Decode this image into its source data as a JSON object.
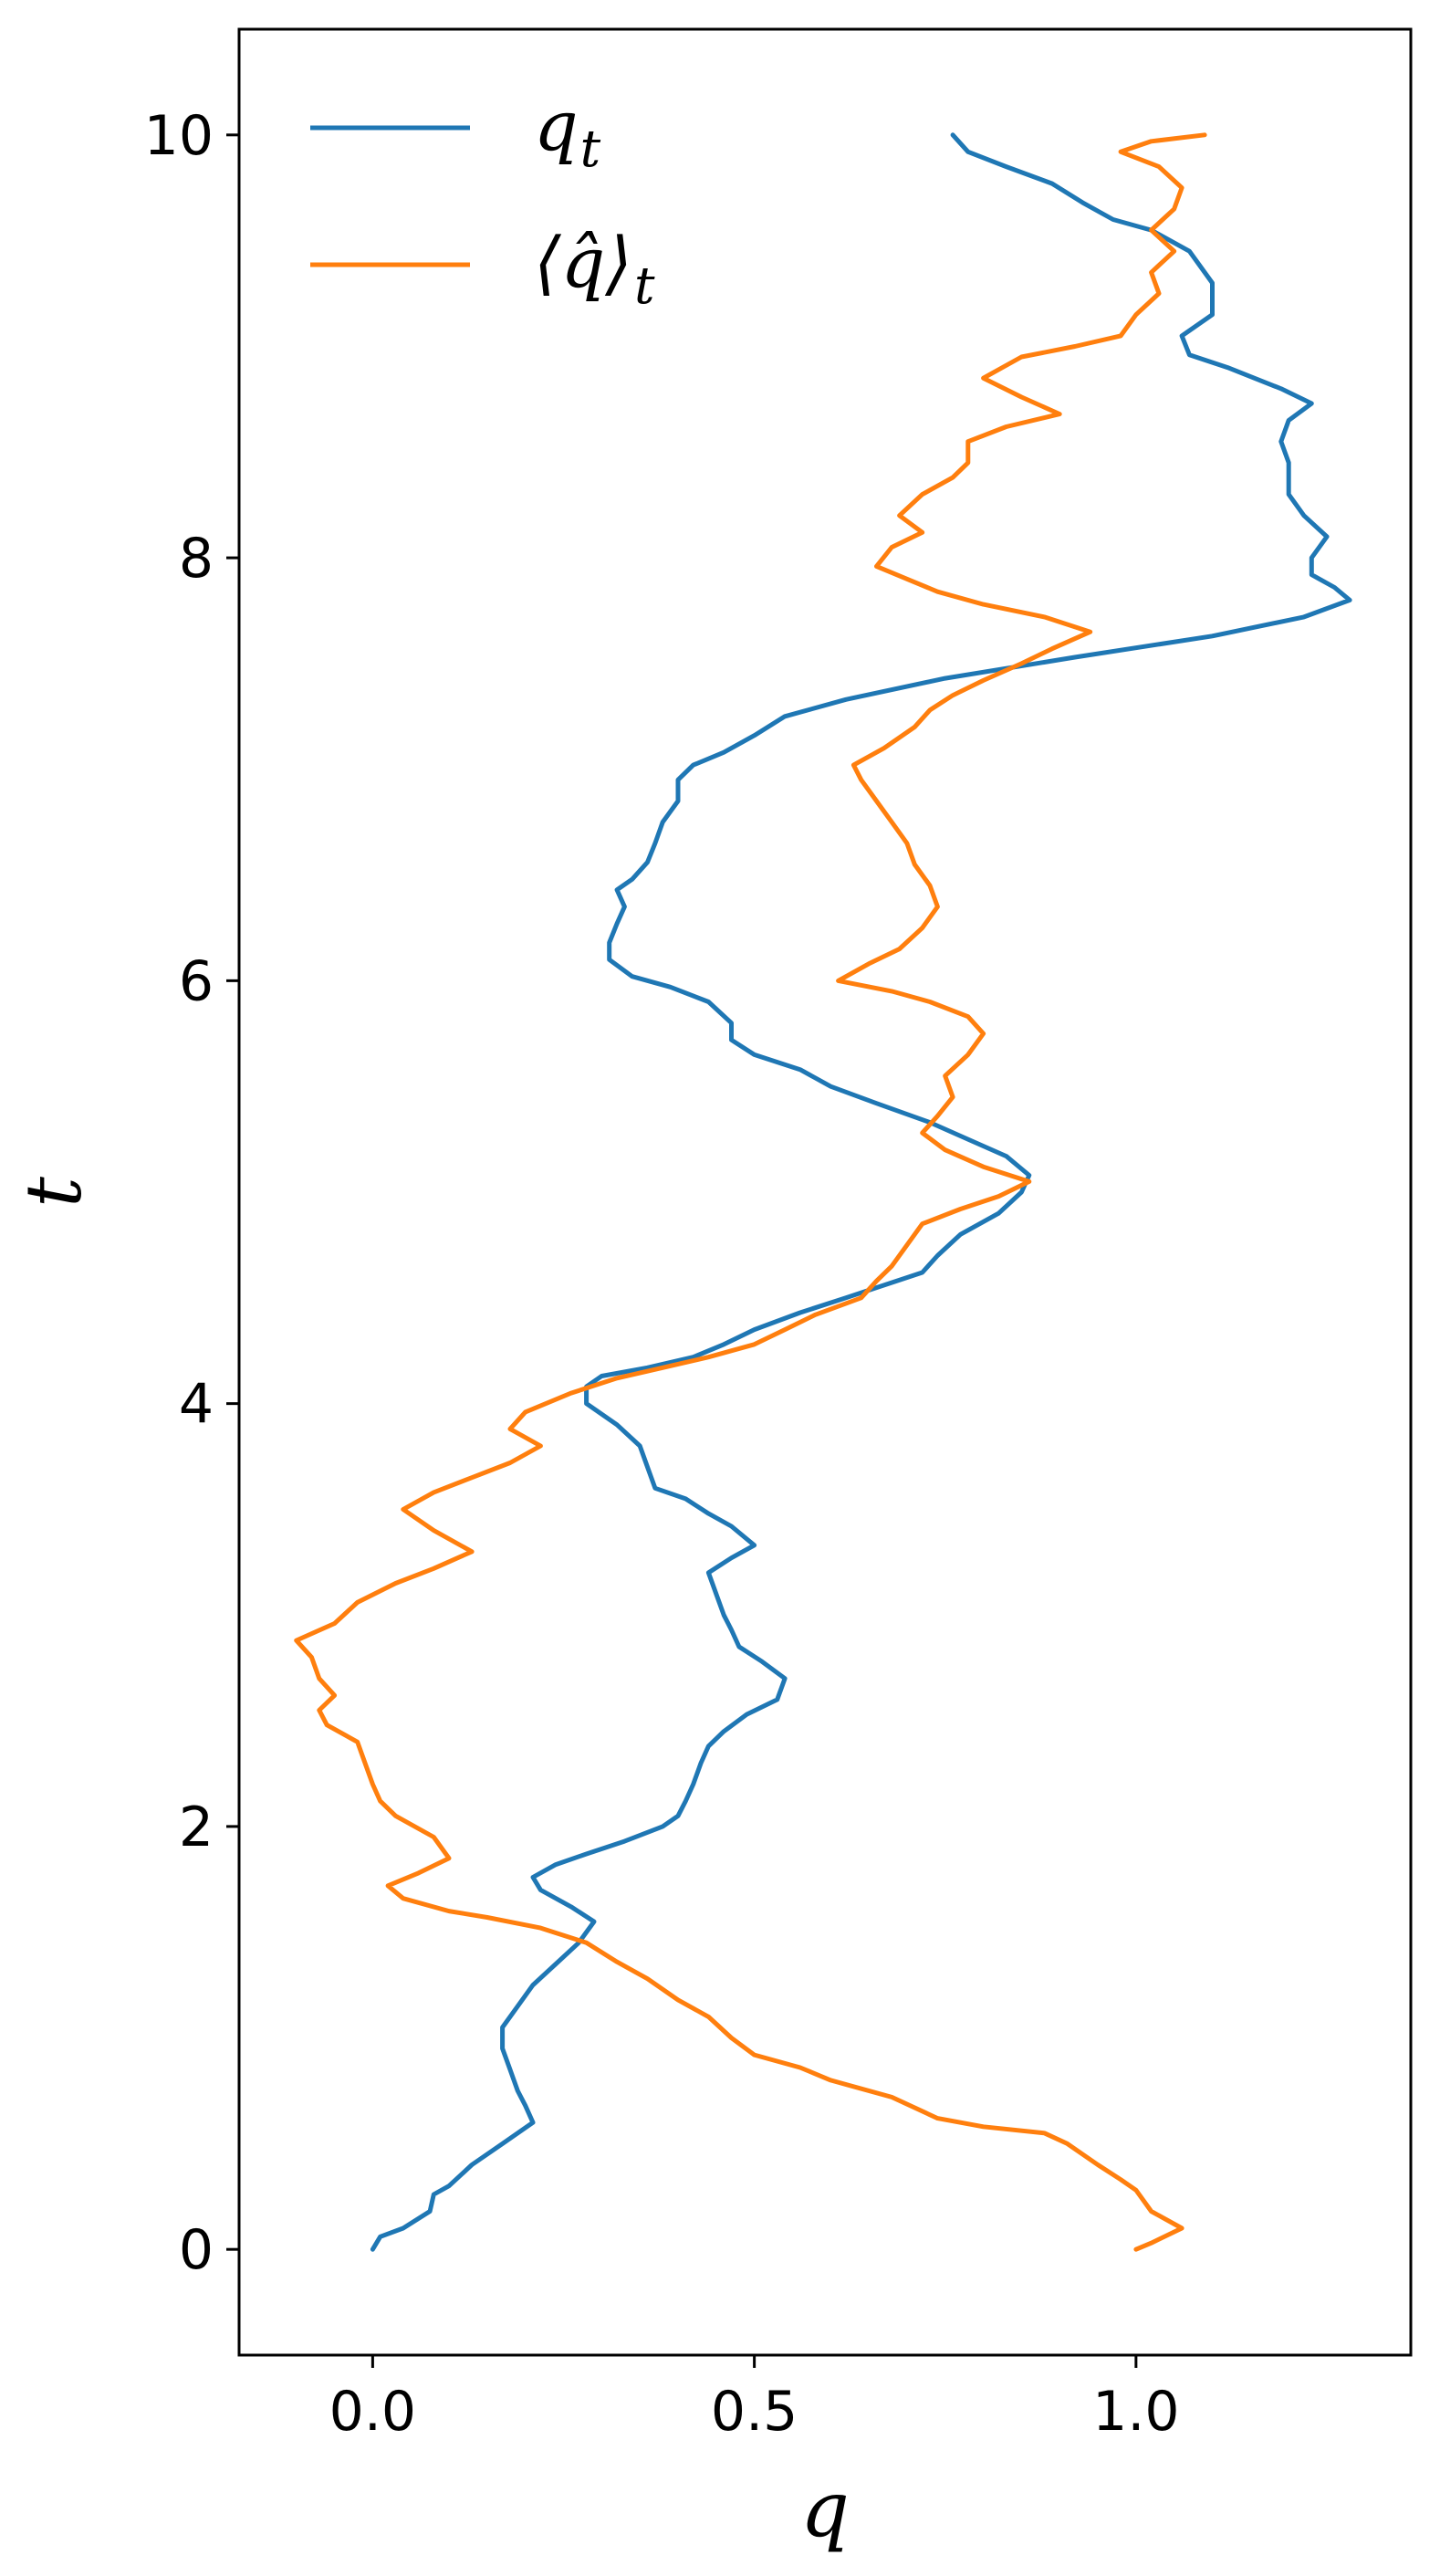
{
  "chart_data": {
    "type": "line",
    "title": "",
    "xlabel": "q",
    "ylabel": "t",
    "xlim": [
      -0.175,
      1.36
    ],
    "ylim": [
      -0.5,
      10.5
    ],
    "xticks": [
      0.0,
      0.5,
      1.0
    ],
    "xtick_labels": [
      "0.0",
      "0.5",
      "1.0"
    ],
    "yticks": [
      0,
      2,
      4,
      6,
      8,
      10
    ],
    "ytick_labels": [
      "0",
      "2",
      "4",
      "6",
      "8",
      "10"
    ],
    "grid": false,
    "legend": {
      "position": "top-left"
    },
    "series": [
      {
        "name": "q_t",
        "legend_base": "q",
        "legend_sub": "t",
        "color": "#1f77b4",
        "points": [
          [
            0.0,
            0.0
          ],
          [
            0.01,
            0.06
          ],
          [
            0.04,
            0.1
          ],
          [
            0.075,
            0.18
          ],
          [
            0.08,
            0.26
          ],
          [
            0.1,
            0.3
          ],
          [
            0.13,
            0.4
          ],
          [
            0.17,
            0.5
          ],
          [
            0.21,
            0.6
          ],
          [
            0.2,
            0.68
          ],
          [
            0.19,
            0.75
          ],
          [
            0.18,
            0.85
          ],
          [
            0.17,
            0.95
          ],
          [
            0.17,
            1.05
          ],
          [
            0.19,
            1.15
          ],
          [
            0.21,
            1.25
          ],
          [
            0.24,
            1.35
          ],
          [
            0.27,
            1.45
          ],
          [
            0.29,
            1.55
          ],
          [
            0.26,
            1.62
          ],
          [
            0.22,
            1.7
          ],
          [
            0.21,
            1.76
          ],
          [
            0.24,
            1.82
          ],
          [
            0.28,
            1.87
          ],
          [
            0.33,
            1.93
          ],
          [
            0.38,
            2.0
          ],
          [
            0.4,
            2.05
          ],
          [
            0.41,
            2.12
          ],
          [
            0.42,
            2.2
          ],
          [
            0.43,
            2.3
          ],
          [
            0.44,
            2.38
          ],
          [
            0.46,
            2.45
          ],
          [
            0.49,
            2.53
          ],
          [
            0.53,
            2.6
          ],
          [
            0.54,
            2.7
          ],
          [
            0.51,
            2.78
          ],
          [
            0.48,
            2.85
          ],
          [
            0.47,
            2.93
          ],
          [
            0.46,
            3.0
          ],
          [
            0.45,
            3.1
          ],
          [
            0.44,
            3.2
          ],
          [
            0.47,
            3.27
          ],
          [
            0.5,
            3.33
          ],
          [
            0.47,
            3.42
          ],
          [
            0.44,
            3.48
          ],
          [
            0.41,
            3.55
          ],
          [
            0.37,
            3.6
          ],
          [
            0.36,
            3.7
          ],
          [
            0.35,
            3.8
          ],
          [
            0.32,
            3.9
          ],
          [
            0.28,
            4.0
          ],
          [
            0.28,
            4.08
          ],
          [
            0.3,
            4.13
          ],
          [
            0.36,
            4.17
          ],
          [
            0.42,
            4.22
          ],
          [
            0.46,
            4.28
          ],
          [
            0.5,
            4.35
          ],
          [
            0.56,
            4.43
          ],
          [
            0.62,
            4.5
          ],
          [
            0.67,
            4.56
          ],
          [
            0.72,
            4.62
          ],
          [
            0.74,
            4.7
          ],
          [
            0.77,
            4.8
          ],
          [
            0.82,
            4.9
          ],
          [
            0.85,
            5.0
          ],
          [
            0.86,
            5.08
          ],
          [
            0.83,
            5.17
          ],
          [
            0.78,
            5.25
          ],
          [
            0.73,
            5.33
          ],
          [
            0.66,
            5.42
          ],
          [
            0.6,
            5.5
          ],
          [
            0.56,
            5.58
          ],
          [
            0.5,
            5.65
          ],
          [
            0.47,
            5.72
          ],
          [
            0.47,
            5.8
          ],
          [
            0.44,
            5.9
          ],
          [
            0.39,
            5.97
          ],
          [
            0.34,
            6.02
          ],
          [
            0.31,
            6.1
          ],
          [
            0.31,
            6.18
          ],
          [
            0.32,
            6.27
          ],
          [
            0.33,
            6.35
          ],
          [
            0.32,
            6.43
          ],
          [
            0.34,
            6.48
          ],
          [
            0.36,
            6.56
          ],
          [
            0.37,
            6.65
          ],
          [
            0.38,
            6.75
          ],
          [
            0.4,
            6.85
          ],
          [
            0.4,
            6.95
          ],
          [
            0.42,
            7.02
          ],
          [
            0.46,
            7.08
          ],
          [
            0.5,
            7.16
          ],
          [
            0.54,
            7.25
          ],
          [
            0.62,
            7.33
          ],
          [
            0.75,
            7.43
          ],
          [
            0.92,
            7.53
          ],
          [
            1.1,
            7.63
          ],
          [
            1.22,
            7.72
          ],
          [
            1.28,
            7.8
          ],
          [
            1.26,
            7.86
          ],
          [
            1.23,
            7.92
          ],
          [
            1.23,
            8.0
          ],
          [
            1.25,
            8.1
          ],
          [
            1.22,
            8.2
          ],
          [
            1.2,
            8.3
          ],
          [
            1.2,
            8.45
          ],
          [
            1.19,
            8.55
          ],
          [
            1.2,
            8.65
          ],
          [
            1.23,
            8.73
          ],
          [
            1.19,
            8.8
          ],
          [
            1.12,
            8.9
          ],
          [
            1.07,
            8.96
          ],
          [
            1.06,
            9.05
          ],
          [
            1.1,
            9.15
          ],
          [
            1.1,
            9.3
          ],
          [
            1.07,
            9.45
          ],
          [
            1.02,
            9.55
          ],
          [
            0.97,
            9.6
          ],
          [
            0.93,
            9.68
          ],
          [
            0.89,
            9.77
          ],
          [
            0.83,
            9.85
          ],
          [
            0.78,
            9.92
          ],
          [
            0.76,
            10.0
          ]
        ]
      },
      {
        "name": "<q^>_t",
        "legend_base": "⟨q̂⟩",
        "legend_sub": "t",
        "color": "#ff7f0e",
        "points": [
          [
            1.0,
            0.0
          ],
          [
            1.02,
            0.03
          ],
          [
            1.06,
            0.1
          ],
          [
            1.02,
            0.18
          ],
          [
            1.0,
            0.28
          ],
          [
            0.98,
            0.33
          ],
          [
            0.95,
            0.4
          ],
          [
            0.91,
            0.5
          ],
          [
            0.88,
            0.55
          ],
          [
            0.8,
            0.58
          ],
          [
            0.74,
            0.62
          ],
          [
            0.68,
            0.72
          ],
          [
            0.6,
            0.8
          ],
          [
            0.56,
            0.86
          ],
          [
            0.5,
            0.92
          ],
          [
            0.47,
            1.0
          ],
          [
            0.44,
            1.1
          ],
          [
            0.4,
            1.18
          ],
          [
            0.36,
            1.28
          ],
          [
            0.32,
            1.36
          ],
          [
            0.28,
            1.45
          ],
          [
            0.22,
            1.52
          ],
          [
            0.15,
            1.57
          ],
          [
            0.1,
            1.6
          ],
          [
            0.04,
            1.66
          ],
          [
            0.02,
            1.72
          ],
          [
            0.06,
            1.78
          ],
          [
            0.1,
            1.85
          ],
          [
            0.08,
            1.95
          ],
          [
            0.03,
            2.05
          ],
          [
            0.01,
            2.12
          ],
          [
            0.0,
            2.2
          ],
          [
            -0.01,
            2.3
          ],
          [
            -0.02,
            2.4
          ],
          [
            -0.06,
            2.48
          ],
          [
            -0.07,
            2.55
          ],
          [
            -0.05,
            2.62
          ],
          [
            -0.07,
            2.7
          ],
          [
            -0.08,
            2.8
          ],
          [
            -0.1,
            2.88
          ],
          [
            -0.05,
            2.96
          ],
          [
            -0.02,
            3.06
          ],
          [
            0.03,
            3.15
          ],
          [
            0.08,
            3.22
          ],
          [
            0.13,
            3.3
          ],
          [
            0.08,
            3.4
          ],
          [
            0.04,
            3.5
          ],
          [
            0.08,
            3.58
          ],
          [
            0.13,
            3.65
          ],
          [
            0.18,
            3.72
          ],
          [
            0.22,
            3.8
          ],
          [
            0.18,
            3.88
          ],
          [
            0.2,
            3.96
          ],
          [
            0.26,
            4.05
          ],
          [
            0.32,
            4.12
          ],
          [
            0.38,
            4.17
          ],
          [
            0.44,
            4.22
          ],
          [
            0.5,
            4.28
          ],
          [
            0.54,
            4.35
          ],
          [
            0.58,
            4.42
          ],
          [
            0.64,
            4.5
          ],
          [
            0.66,
            4.58
          ],
          [
            0.68,
            4.65
          ],
          [
            0.7,
            4.75
          ],
          [
            0.72,
            4.85
          ],
          [
            0.77,
            4.92
          ],
          [
            0.82,
            4.98
          ],
          [
            0.86,
            5.05
          ],
          [
            0.8,
            5.12
          ],
          [
            0.75,
            5.2
          ],
          [
            0.72,
            5.28
          ],
          [
            0.74,
            5.36
          ],
          [
            0.76,
            5.45
          ],
          [
            0.75,
            5.55
          ],
          [
            0.78,
            5.65
          ],
          [
            0.8,
            5.75
          ],
          [
            0.78,
            5.83
          ],
          [
            0.73,
            5.9
          ],
          [
            0.68,
            5.95
          ],
          [
            0.61,
            6.0
          ],
          [
            0.65,
            6.08
          ],
          [
            0.69,
            6.15
          ],
          [
            0.72,
            6.25
          ],
          [
            0.74,
            6.35
          ],
          [
            0.73,
            6.45
          ],
          [
            0.71,
            6.55
          ],
          [
            0.7,
            6.65
          ],
          [
            0.68,
            6.75
          ],
          [
            0.66,
            6.85
          ],
          [
            0.64,
            6.95
          ],
          [
            0.63,
            7.02
          ],
          [
            0.67,
            7.1
          ],
          [
            0.71,
            7.2
          ],
          [
            0.73,
            7.28
          ],
          [
            0.76,
            7.35
          ],
          [
            0.8,
            7.42
          ],
          [
            0.85,
            7.5
          ],
          [
            0.89,
            7.57
          ],
          [
            0.94,
            7.65
          ],
          [
            0.88,
            7.72
          ],
          [
            0.8,
            7.78
          ],
          [
            0.74,
            7.84
          ],
          [
            0.7,
            7.9
          ],
          [
            0.66,
            7.96
          ],
          [
            0.68,
            8.05
          ],
          [
            0.72,
            8.12
          ],
          [
            0.69,
            8.2
          ],
          [
            0.72,
            8.3
          ],
          [
            0.76,
            8.38
          ],
          [
            0.78,
            8.45
          ],
          [
            0.78,
            8.55
          ],
          [
            0.83,
            8.62
          ],
          [
            0.9,
            8.68
          ],
          [
            0.85,
            8.76
          ],
          [
            0.8,
            8.85
          ],
          [
            0.85,
            8.95
          ],
          [
            0.92,
            9.0
          ],
          [
            0.98,
            9.05
          ],
          [
            1.0,
            9.15
          ],
          [
            1.03,
            9.25
          ],
          [
            1.02,
            9.35
          ],
          [
            1.05,
            9.45
          ],
          [
            1.02,
            9.55
          ],
          [
            1.05,
            9.65
          ],
          [
            1.06,
            9.75
          ],
          [
            1.03,
            9.85
          ],
          [
            0.98,
            9.92
          ],
          [
            1.02,
            9.97
          ],
          [
            1.09,
            10.0
          ]
        ]
      }
    ]
  }
}
